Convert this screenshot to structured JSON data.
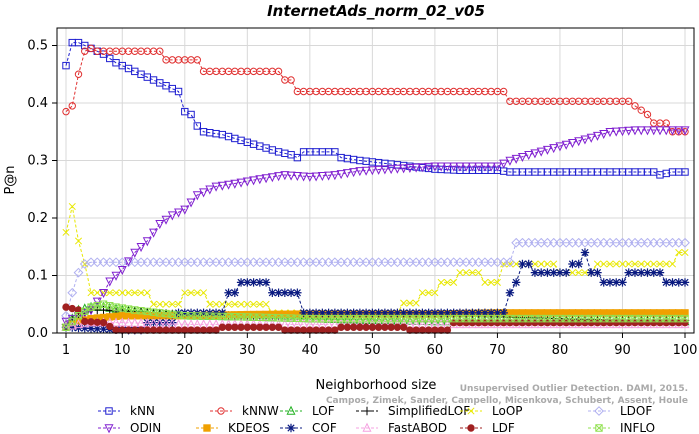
{
  "chart_data": {
    "type": "line",
    "title": "InternetAds_norm_02_v05",
    "xlabel": "Neighborhood size",
    "ylabel": "P@n",
    "xlim": [
      1,
      100
    ],
    "ylim": [
      0,
      0.52
    ],
    "xticks": [
      1,
      10,
      20,
      30,
      40,
      50,
      60,
      70,
      80,
      90,
      100
    ],
    "yticks": [
      0.0,
      0.1,
      0.2,
      0.3,
      0.4,
      0.5
    ],
    "ytick_labels": [
      "0.0",
      "0.1",
      "0.2",
      "0.3",
      "0.4",
      "0.5"
    ],
    "legend_position": "bottom",
    "watermark": {
      "line1": "Unsupervised Outlier Detection. DAMI, 2015.",
      "line2": "Campos, Zimek, Sander, Campello, Micenkova, Schubert, Assent, Houle"
    },
    "series": [
      {
        "name": "kNN",
        "color": "#1f1fd0",
        "marker": "square",
        "points": [
          [
            1,
            0.465
          ],
          [
            2,
            0.505
          ],
          [
            3,
            0.505
          ],
          [
            4,
            0.5
          ],
          [
            5,
            0.495
          ],
          [
            7,
            0.485
          ],
          [
            9,
            0.47
          ],
          [
            11,
            0.46
          ],
          [
            13,
            0.45
          ],
          [
            15,
            0.44
          ],
          [
            17,
            0.43
          ],
          [
            19,
            0.42
          ],
          [
            20,
            0.385
          ],
          [
            21,
            0.38
          ],
          [
            22,
            0.36
          ],
          [
            23,
            0.35
          ],
          [
            26,
            0.345
          ],
          [
            29,
            0.335
          ],
          [
            32,
            0.325
          ],
          [
            35,
            0.315
          ],
          [
            37,
            0.31
          ],
          [
            38,
            0.305
          ],
          [
            39,
            0.315
          ],
          [
            44,
            0.315
          ],
          [
            45,
            0.305
          ],
          [
            48,
            0.3
          ],
          [
            52,
            0.295
          ],
          [
            56,
            0.29
          ],
          [
            60,
            0.285
          ],
          [
            64,
            0.283
          ],
          [
            70,
            0.283
          ],
          [
            72,
            0.28
          ],
          [
            95,
            0.28
          ],
          [
            96,
            0.275
          ],
          [
            98,
            0.28
          ],
          [
            100,
            0.28
          ]
        ]
      },
      {
        "name": "kNNW",
        "color": "#e03030",
        "marker": "circle",
        "points": [
          [
            1,
            0.385
          ],
          [
            2,
            0.395
          ],
          [
            3,
            0.45
          ],
          [
            4,
            0.49
          ],
          [
            5,
            0.495
          ],
          [
            6,
            0.49
          ],
          [
            16,
            0.49
          ],
          [
            17,
            0.475
          ],
          [
            22,
            0.475
          ],
          [
            23,
            0.455
          ],
          [
            35,
            0.455
          ],
          [
            36,
            0.44
          ],
          [
            37,
            0.44
          ],
          [
            38,
            0.42
          ],
          [
            71,
            0.42
          ],
          [
            72,
            0.403
          ],
          [
            91,
            0.403
          ],
          [
            92,
            0.395
          ],
          [
            94,
            0.38
          ],
          [
            95,
            0.365
          ],
          [
            97,
            0.365
          ],
          [
            98,
            0.35
          ],
          [
            100,
            0.35
          ]
        ]
      },
      {
        "name": "LOF",
        "color": "#20b020",
        "marker": "triangle-up",
        "points": [
          [
            1,
            0.01
          ],
          [
            3,
            0.04
          ],
          [
            5,
            0.045
          ],
          [
            7,
            0.045
          ],
          [
            10,
            0.04
          ],
          [
            14,
            0.035
          ],
          [
            20,
            0.03
          ],
          [
            30,
            0.028
          ],
          [
            40,
            0.025
          ],
          [
            50,
            0.022
          ],
          [
            60,
            0.02
          ],
          [
            70,
            0.02
          ],
          [
            80,
            0.02
          ],
          [
            90,
            0.02
          ],
          [
            100,
            0.02
          ]
        ]
      },
      {
        "name": "SimplifiedLOF",
        "color": "#000000",
        "marker": "plus",
        "points": [
          [
            1,
            0.015
          ],
          [
            3,
            0.03
          ],
          [
            5,
            0.04
          ],
          [
            7,
            0.04
          ],
          [
            10,
            0.038
          ],
          [
            15,
            0.035
          ],
          [
            20,
            0.032
          ],
          [
            30,
            0.03
          ],
          [
            40,
            0.028
          ],
          [
            50,
            0.028
          ],
          [
            60,
            0.03
          ],
          [
            70,
            0.028
          ],
          [
            80,
            0.025
          ],
          [
            90,
            0.022
          ],
          [
            100,
            0.022
          ]
        ]
      },
      {
        "name": "LoOP",
        "color": "#e8e800",
        "marker": "x",
        "points": [
          [
            1,
            0.175
          ],
          [
            2,
            0.22
          ],
          [
            3,
            0.16
          ],
          [
            4,
            0.12
          ],
          [
            5,
            0.07
          ],
          [
            7,
            0.07
          ],
          [
            14,
            0.07
          ],
          [
            15,
            0.05
          ],
          [
            19,
            0.05
          ],
          [
            20,
            0.07
          ],
          [
            23,
            0.07
          ],
          [
            24,
            0.05
          ],
          [
            33,
            0.05
          ],
          [
            34,
            0.035
          ],
          [
            54,
            0.035
          ],
          [
            55,
            0.052
          ],
          [
            57,
            0.052
          ],
          [
            58,
            0.07
          ],
          [
            60,
            0.07
          ],
          [
            61,
            0.088
          ],
          [
            63,
            0.088
          ],
          [
            64,
            0.105
          ],
          [
            67,
            0.105
          ],
          [
            68,
            0.088
          ],
          [
            70,
            0.088
          ],
          [
            71,
            0.12
          ],
          [
            79,
            0.12
          ],
          [
            80,
            0.105
          ],
          [
            85,
            0.105
          ],
          [
            86,
            0.12
          ],
          [
            98,
            0.12
          ],
          [
            99,
            0.14
          ],
          [
            100,
            0.14
          ]
        ]
      },
      {
        "name": "LDOF",
        "color": "#b0b0f0",
        "marker": "diamond",
        "points": [
          [
            1,
            0.03
          ],
          [
            2,
            0.07
          ],
          [
            3,
            0.105
          ],
          [
            4,
            0.12
          ],
          [
            5,
            0.123
          ],
          [
            72,
            0.123
          ],
          [
            73,
            0.157
          ],
          [
            100,
            0.157
          ]
        ]
      },
      {
        "name": "ODIN",
        "color": "#8020d0",
        "marker": "triangle-down",
        "points": [
          [
            1,
            0.02
          ],
          [
            4,
            0.035
          ],
          [
            5,
            0.04
          ],
          [
            6,
            0.055
          ],
          [
            7,
            0.07
          ],
          [
            8,
            0.09
          ],
          [
            10,
            0.11
          ],
          [
            12,
            0.14
          ],
          [
            14,
            0.16
          ],
          [
            16,
            0.19
          ],
          [
            18,
            0.205
          ],
          [
            20,
            0.215
          ],
          [
            22,
            0.24
          ],
          [
            25,
            0.255
          ],
          [
            28,
            0.26
          ],
          [
            32,
            0.268
          ],
          [
            36,
            0.275
          ],
          [
            40,
            0.272
          ],
          [
            44,
            0.275
          ],
          [
            48,
            0.282
          ],
          [
            52,
            0.285
          ],
          [
            60,
            0.29
          ],
          [
            70,
            0.29
          ],
          [
            72,
            0.3
          ],
          [
            75,
            0.31
          ],
          [
            80,
            0.325
          ],
          [
            85,
            0.34
          ],
          [
            88,
            0.35
          ],
          [
            92,
            0.353
          ],
          [
            100,
            0.353
          ]
        ]
      },
      {
        "name": "KDEOS",
        "color": "#f0a000",
        "marker": "square-filled",
        "points": [
          [
            1,
            0.01
          ],
          [
            3,
            0.02
          ],
          [
            5,
            0.025
          ],
          [
            10,
            0.03
          ],
          [
            20,
            0.03
          ],
          [
            30,
            0.032
          ],
          [
            40,
            0.033
          ],
          [
            50,
            0.033
          ],
          [
            60,
            0.033
          ],
          [
            70,
            0.035
          ],
          [
            80,
            0.035
          ],
          [
            90,
            0.035
          ],
          [
            100,
            0.035
          ]
        ]
      },
      {
        "name": "COF",
        "color": "#0a1a80",
        "marker": "asterisk",
        "points": [
          [
            1,
            0.01
          ],
          [
            10,
            0.005
          ],
          [
            13,
            0.005
          ],
          [
            14,
            0.018
          ],
          [
            18,
            0.018
          ],
          [
            19,
            0.035
          ],
          [
            26,
            0.035
          ],
          [
            27,
            0.07
          ],
          [
            28,
            0.07
          ],
          [
            29,
            0.088
          ],
          [
            33,
            0.088
          ],
          [
            34,
            0.07
          ],
          [
            38,
            0.07
          ],
          [
            39,
            0.035
          ],
          [
            71,
            0.035
          ],
          [
            72,
            0.07
          ],
          [
            73,
            0.088
          ],
          [
            74,
            0.12
          ],
          [
            75,
            0.12
          ],
          [
            76,
            0.105
          ],
          [
            81,
            0.105
          ],
          [
            82,
            0.12
          ],
          [
            83,
            0.12
          ],
          [
            84,
            0.14
          ],
          [
            85,
            0.105
          ],
          [
            86,
            0.105
          ],
          [
            87,
            0.088
          ],
          [
            90,
            0.088
          ],
          [
            91,
            0.105
          ],
          [
            96,
            0.105
          ],
          [
            97,
            0.088
          ],
          [
            100,
            0.088
          ]
        ]
      },
      {
        "name": "FastABOD",
        "color": "#f5a0e0",
        "marker": "triangle-up-open",
        "points": [
          [
            1,
            0.01
          ],
          [
            3,
            0.015
          ],
          [
            5,
            0.018
          ],
          [
            10,
            0.018
          ],
          [
            20,
            0.015
          ],
          [
            30,
            0.015
          ],
          [
            40,
            0.015
          ],
          [
            60,
            0.015
          ],
          [
            100,
            0.015
          ]
        ]
      },
      {
        "name": "LDF",
        "color": "#a02020",
        "marker": "circle-filled",
        "points": [
          [
            1,
            0.045
          ],
          [
            3,
            0.04
          ],
          [
            4,
            0.02
          ],
          [
            7,
            0.018
          ],
          [
            9,
            0.005
          ],
          [
            25,
            0.005
          ],
          [
            26,
            0.01
          ],
          [
            35,
            0.01
          ],
          [
            36,
            0.005
          ],
          [
            44,
            0.005
          ],
          [
            45,
            0.01
          ],
          [
            55,
            0.01
          ],
          [
            56,
            0.005
          ],
          [
            62,
            0.005
          ],
          [
            63,
            0.018
          ],
          [
            100,
            0.018
          ]
        ]
      },
      {
        "name": "INFLO",
        "color": "#90e050",
        "marker": "square-x",
        "points": [
          [
            1,
            0.01
          ],
          [
            3,
            0.03
          ],
          [
            5,
            0.045
          ],
          [
            7,
            0.05
          ],
          [
            9,
            0.045
          ],
          [
            12,
            0.04
          ],
          [
            16,
            0.035
          ],
          [
            20,
            0.03
          ],
          [
            30,
            0.028
          ],
          [
            40,
            0.025
          ],
          [
            50,
            0.025
          ],
          [
            60,
            0.025
          ],
          [
            70,
            0.025
          ],
          [
            80,
            0.025
          ],
          [
            90,
            0.025
          ],
          [
            100,
            0.025
          ]
        ]
      }
    ]
  }
}
